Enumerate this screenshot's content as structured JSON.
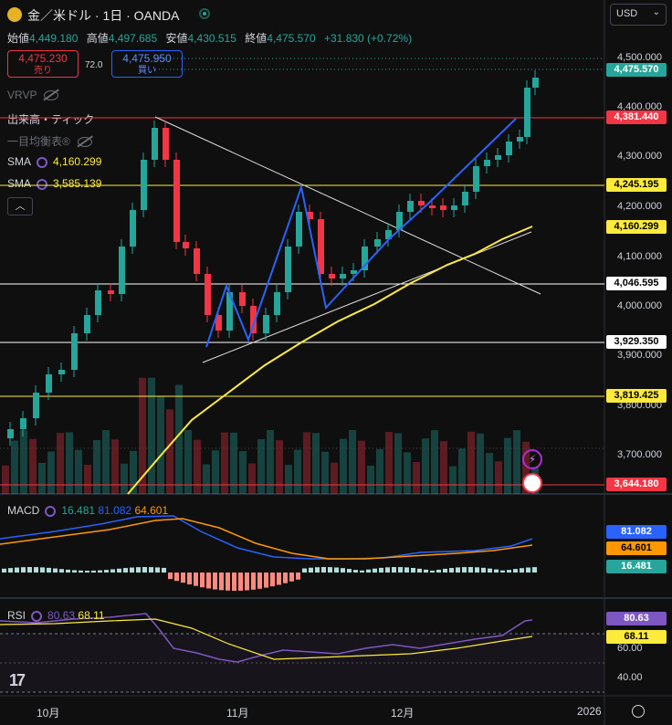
{
  "header": {
    "symbol_title": "金／米ドル · 1日 · OANDA",
    "currency": "USD",
    "ohlc": {
      "open_label": "始値",
      "open": "4,449.180",
      "high_label": "高値",
      "high": "4,497.685",
      "low_label": "安値",
      "low": "4,430.515",
      "close_label": "終値",
      "close": "4,475.570",
      "change": "+31.830 (+0.72%)"
    }
  },
  "trade": {
    "bid_price": "4,475.230",
    "bid_label": "売り",
    "spread": "72.0",
    "ask_price": "4,475.950",
    "ask_label": "買い"
  },
  "indicators": {
    "vrvp": "VRVP",
    "volume": "出来高・ティック",
    "ichimoku": "一目均衡表®",
    "sma1_label": "SMA",
    "sma1_value": "4,160.299",
    "sma2_label": "SMA",
    "sma2_value": "3,585.139"
  },
  "price_axis": {
    "ticks": [
      "4,500.000",
      "4,400.000",
      "4,300.000",
      "4,200.000",
      "4,100.000",
      "4,000.000",
      "3,900.000",
      "3,800.000",
      "3,700.000"
    ],
    "tags": {
      "last": "4,475.570",
      "red_line": "4,381.440",
      "yellow_line1": "4,245.195",
      "sma1": "4,160.299",
      "white_line1": "4,046.595",
      "white_line2": "3,929.350",
      "yellow_line2": "3,819.425",
      "red_line2": "3,644.180"
    }
  },
  "macd": {
    "label": "MACD",
    "v1": "16.481",
    "v2": "81.082",
    "v3": "64.601",
    "tags": {
      "macd": "81.082",
      "signal": "64.601",
      "hist": "16.481"
    }
  },
  "rsi": {
    "label": "RSI",
    "v1": "80.63",
    "v2": "68.11",
    "ticks": [
      "60.00",
      "40.00"
    ],
    "tags": {
      "rsi": "80.63",
      "ma": "68.11"
    }
  },
  "time_axis": {
    "labels": [
      "10月",
      "11月",
      "12月",
      "2026"
    ]
  },
  "colors": {
    "up": "#26a69a",
    "down": "#f23645",
    "sma_fast": "#ffeb3b",
    "pattern": "#2962ff"
  }
}
